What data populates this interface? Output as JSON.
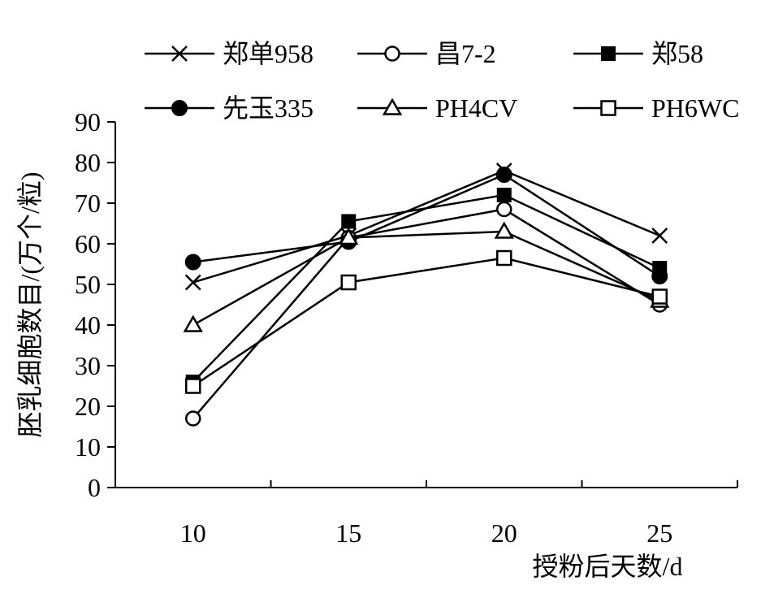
{
  "chart_data": {
    "type": "line",
    "xlabel": "授粉后天数/d",
    "ylabel": "胚乳细胞数目/(万个/粒)",
    "x": [
      10,
      15,
      20,
      25
    ],
    "x_ticks": [
      "10",
      "15",
      "20",
      "25"
    ],
    "ylim": [
      0,
      90
    ],
    "y_ticks": [
      "0",
      "10",
      "20",
      "30",
      "40",
      "50",
      "60",
      "70",
      "80",
      "90"
    ],
    "grid": false,
    "legend_position": "top",
    "series": [
      {
        "name": "郑单958",
        "marker": "x",
        "values": [
          50.5,
          62,
          78,
          62
        ]
      },
      {
        "name": "昌7-2",
        "marker": "circle-open",
        "values": [
          17,
          61.5,
          68.5,
          45
        ]
      },
      {
        "name": "郑58",
        "marker": "square-filled",
        "values": [
          26,
          65.5,
          72,
          54
        ]
      },
      {
        "name": "先玉335",
        "marker": "circle-filled",
        "values": [
          55.5,
          60.5,
          77,
          52
        ]
      },
      {
        "name": "PH4CV",
        "marker": "triangle-open",
        "values": [
          40,
          61.5,
          63,
          46
        ]
      },
      {
        "name": "PH6WC",
        "marker": "square-open",
        "values": [
          25,
          50.5,
          56.5,
          47
        ]
      }
    ],
    "colors": {
      "line": "#000000",
      "background": "#ffffff"
    }
  }
}
